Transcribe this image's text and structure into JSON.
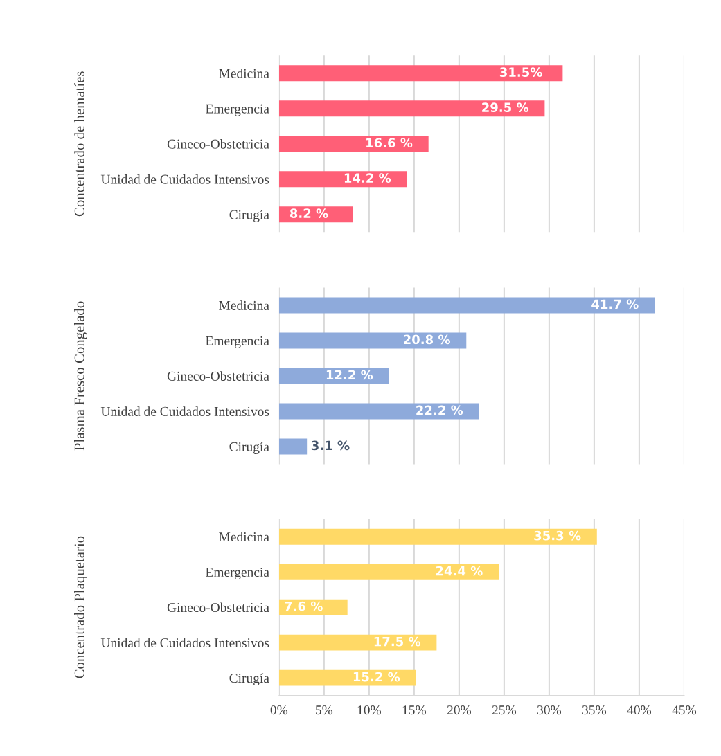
{
  "chart_data": [
    {
      "type": "bar",
      "orientation": "horizontal",
      "ylabel": "Concentrado de hematíes",
      "categories": [
        "Medicina",
        "Emergencia",
        "Gineco-Obstetricia",
        "Unidad de Cuidados Intensivos",
        "Cirugía"
      ],
      "values": [
        31.5,
        29.5,
        16.6,
        14.2,
        8.2
      ],
      "value_labels": [
        "31.5%",
        "29.5 %",
        "16.6 %",
        "14.2 %",
        "8.2 %"
      ],
      "color": "#ff5f77",
      "xlim": [
        0,
        45
      ],
      "xticks": [
        {
          "value": 0,
          "label": null
        },
        {
          "value": 5,
          "label": null
        },
        {
          "value": 10,
          "label": null
        },
        {
          "value": 15,
          "label": null
        },
        {
          "value": 20,
          "label": null
        },
        {
          "value": 25,
          "label": null
        },
        {
          "value": 30,
          "label": null
        },
        {
          "value": 35,
          "label": null
        },
        {
          "value": 40,
          "label": null
        },
        {
          "value": 45,
          "label": null
        }
      ],
      "grid": "x",
      "tick_labels": "y"
    },
    {
      "type": "bar",
      "orientation": "horizontal",
      "ylabel": "Plasma Fresco Congelado",
      "categories": [
        "Medicina",
        "Emergencia",
        "Gineco-Obstetricia",
        "Unidad de Cuidados Intensivos",
        "Cirugía"
      ],
      "values": [
        41.7,
        20.8,
        12.2,
        22.2,
        3.1
      ],
      "value_labels": [
        "41.7 %",
        "20.8 %",
        "12.2 %",
        "22.2 %",
        "3.1 %"
      ],
      "color": "#8eaadb",
      "xlim": [
        0,
        45
      ],
      "xticks": [
        {
          "value": 0,
          "label": null
        },
        {
          "value": 5,
          "label": null
        },
        {
          "value": 10,
          "label": null
        },
        {
          "value": 15,
          "label": null
        },
        {
          "value": 20,
          "label": null
        },
        {
          "value": 25,
          "label": null
        },
        {
          "value": 30,
          "label": null
        },
        {
          "value": 35,
          "label": null
        },
        {
          "value": 40,
          "label": null
        },
        {
          "value": 45,
          "label": null
        }
      ],
      "grid": "x",
      "tick_labels": "y"
    },
    {
      "type": "bar",
      "orientation": "horizontal",
      "ylabel": "Concentrado Plaquetario",
      "categories": [
        "Medicina",
        "Emergencia",
        "Gineco-Obstetricia",
        "Unidad de Cuidados Intensivos",
        "Cirugía"
      ],
      "values": [
        35.3,
        24.4,
        7.6,
        17.5,
        15.2
      ],
      "value_labels": [
        "35.3 %",
        "24.4 %",
        "7.6 %",
        "17.5 %",
        "15.2 %"
      ],
      "color": "#ffd966",
      "xlim": [
        0,
        45
      ],
      "xticks": [
        {
          "value": 0,
          "label": "0%"
        },
        {
          "value": 5,
          "label": "5%"
        },
        {
          "value": 10,
          "label": "10%"
        },
        {
          "value": 15,
          "label": "15%"
        },
        {
          "value": 20,
          "label": "20%"
        },
        {
          "value": 25,
          "label": "25%"
        },
        {
          "value": 30,
          "label": "30%"
        },
        {
          "value": 35,
          "label": "35%"
        },
        {
          "value": 40,
          "label": "40%"
        },
        {
          "value": 45,
          "label": "45%"
        }
      ],
      "grid": "x"
    }
  ]
}
